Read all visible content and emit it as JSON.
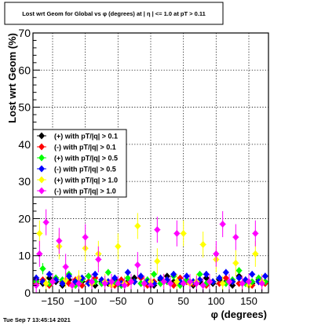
{
  "title": "Lost wrt Geom for Global vs φ (degrees) at |  η | <= 1.0 at pT > 0.11",
  "timestamp": "Tue Sep  7 13:45:14 2021",
  "chart_data": {
    "type": "scatter",
    "title": "Lost wrt Geom for Global vs φ (degrees) at |  η | <= 1.0 at pT > 0.11",
    "xlabel": "φ (degrees)",
    "ylabel": "Lost wrt Geom (%)",
    "xlim": [
      -180,
      180
    ],
    "ylim": [
      0,
      70
    ],
    "xticks": [
      -150,
      -100,
      -50,
      0,
      50,
      100,
      150
    ],
    "yticks": [
      0,
      10,
      20,
      30,
      40,
      50,
      60,
      70
    ],
    "xtick_labels": [
      "−150",
      "−100",
      "−50",
      "0",
      "50",
      "100",
      "150"
    ],
    "ytick_labels": [
      "0",
      "10",
      "20",
      "30",
      "40",
      "50",
      "60",
      "70"
    ],
    "grid": true,
    "legend_position": "left",
    "series": [
      {
        "name": "(+) with pT/|q| > 0.1",
        "color": "#000000",
        "marker": "diamond",
        "x": [
          -175,
          -165,
          -155,
          -145,
          -135,
          -125,
          -115,
          -105,
          -95,
          -85,
          -75,
          -65,
          -55,
          -45,
          -35,
          -25,
          -15,
          -5,
          5,
          15,
          25,
          35,
          45,
          55,
          65,
          75,
          85,
          95,
          105,
          115,
          125,
          135,
          145,
          155,
          165,
          175
        ],
        "y": [
          3.5,
          2.5,
          4.0,
          3.0,
          2.0,
          3.5,
          2.5,
          3.0,
          4.5,
          2.0,
          3.0,
          2.5,
          3.5,
          2.0,
          3.0,
          4.0,
          2.5,
          3.0,
          2.0,
          3.5,
          4.5,
          3.0,
          2.5,
          3.5,
          2.0,
          3.0,
          4.0,
          2.5,
          3.5,
          3.0,
          2.0,
          4.5,
          3.0,
          2.5,
          3.5,
          3.0
        ]
      },
      {
        "name": "(-) with pT/|q| > 0.1",
        "color": "#ff0000",
        "marker": "diamond",
        "x": [
          -175,
          -165,
          -155,
          -145,
          -135,
          -125,
          -115,
          -105,
          -95,
          -85,
          -75,
          -65,
          -55,
          -45,
          -35,
          -25,
          -15,
          -5,
          5,
          15,
          25,
          35,
          45,
          55,
          65,
          75,
          85,
          95,
          105,
          115,
          125,
          135,
          145,
          155,
          165,
          175
        ],
        "y": [
          2.5,
          3.5,
          2.0,
          4.0,
          3.0,
          2.5,
          3.5,
          2.0,
          3.0,
          4.0,
          2.5,
          3.0,
          2.0,
          3.5,
          2.5,
          3.0,
          4.0,
          2.0,
          3.0,
          2.5,
          3.5,
          2.0,
          4.0,
          3.0,
          2.5,
          3.5,
          2.0,
          3.0,
          2.5,
          4.0,
          3.0,
          2.5,
          3.5,
          2.0,
          3.0,
          2.5
        ]
      },
      {
        "name": "(+) with pT/|q| > 0.5",
        "color": "#00ff00",
        "marker": "diamond",
        "x": [
          -175,
          -165,
          -155,
          -145,
          -135,
          -125,
          -115,
          -105,
          -95,
          -85,
          -75,
          -65,
          -55,
          -45,
          -35,
          -25,
          -15,
          -5,
          5,
          15,
          25,
          35,
          45,
          55,
          65,
          75,
          85,
          95,
          105,
          115,
          125,
          135,
          145,
          155,
          165,
          175
        ],
        "y": [
          3.0,
          6.5,
          2.5,
          4.0,
          3.5,
          5.0,
          2.0,
          3.5,
          4.5,
          3.0,
          2.5,
          5.5,
          3.0,
          2.0,
          4.0,
          3.0,
          2.5,
          3.5,
          5.0,
          2.5,
          3.0,
          4.5,
          2.0,
          3.5,
          3.0,
          5.0,
          2.5,
          3.0,
          4.0,
          2.5,
          3.5,
          6.0,
          2.5,
          3.0,
          4.0,
          3.0
        ]
      },
      {
        "name": "(-) with pT/|q| > 0.5",
        "color": "#0000ff",
        "marker": "diamond",
        "x": [
          -175,
          -165,
          -155,
          -145,
          -135,
          -125,
          -115,
          -105,
          -95,
          -85,
          -75,
          -65,
          -55,
          -45,
          -35,
          -25,
          -15,
          -5,
          5,
          15,
          25,
          35,
          45,
          55,
          65,
          75,
          85,
          95,
          105,
          115,
          125,
          135,
          145,
          155,
          165,
          175
        ],
        "y": [
          4.0,
          3.0,
          5.0,
          3.5,
          2.5,
          4.5,
          3.0,
          4.0,
          2.5,
          5.0,
          3.5,
          3.0,
          4.0,
          2.5,
          5.5,
          3.0,
          4.5,
          3.0,
          2.5,
          4.0,
          3.5,
          5.0,
          3.0,
          4.5,
          3.0,
          3.5,
          5.0,
          3.0,
          4.0,
          5.5,
          3.0,
          4.0,
          3.5,
          5.0,
          3.0,
          4.5
        ]
      },
      {
        "name": "(+) with pT/|q| > 1.0",
        "color": "#ffff00",
        "marker": "diamond",
        "x": [
          -170,
          -160,
          -150,
          -140,
          -130,
          -120,
          -110,
          -100,
          -90,
          -80,
          -70,
          -60,
          -50,
          -40,
          -30,
          -20,
          -10,
          0,
          10,
          20,
          30,
          40,
          50,
          60,
          70,
          80,
          90,
          100,
          110,
          120,
          130,
          140,
          150,
          160,
          170
        ],
        "y": [
          16.0,
          2.5,
          3.0,
          12.5,
          3.5,
          2.0,
          4.0,
          12.0,
          2.5,
          10.5,
          3.0,
          2.0,
          12.5,
          2.5,
          3.0,
          18.0,
          2.5,
          3.0,
          8.5,
          3.0,
          2.5,
          3.0,
          16.0,
          2.5,
          3.0,
          13.0,
          3.0,
          9.0,
          2.5,
          3.0,
          8.0,
          2.5,
          2.0,
          10.5,
          3.0
        ]
      },
      {
        "name": "(-) with pT/|q| > 1.0",
        "color": "#ff00ff",
        "marker": "diamond",
        "x": [
          -175,
          -170,
          -160,
          -150,
          -140,
          -130,
          -120,
          -110,
          -100,
          -90,
          -80,
          -70,
          -60,
          -50,
          -40,
          -30,
          -20,
          -10,
          0,
          10,
          20,
          30,
          40,
          50,
          60,
          70,
          80,
          90,
          100,
          110,
          120,
          130,
          140,
          150,
          160,
          170
        ],
        "y": [
          2.0,
          10.5,
          19.0,
          3.0,
          14.0,
          7.0,
          2.0,
          2.5,
          15.0,
          3.0,
          9.0,
          2.5,
          3.0,
          2.5,
          2.0,
          3.0,
          7.5,
          2.5,
          2.0,
          17.0,
          3.0,
          2.5,
          16.0,
          2.5,
          3.0,
          2.5,
          2.0,
          3.0,
          10.5,
          18.5,
          3.0,
          15.0,
          2.5,
          3.0,
          16.0,
          2.5
        ]
      }
    ]
  }
}
